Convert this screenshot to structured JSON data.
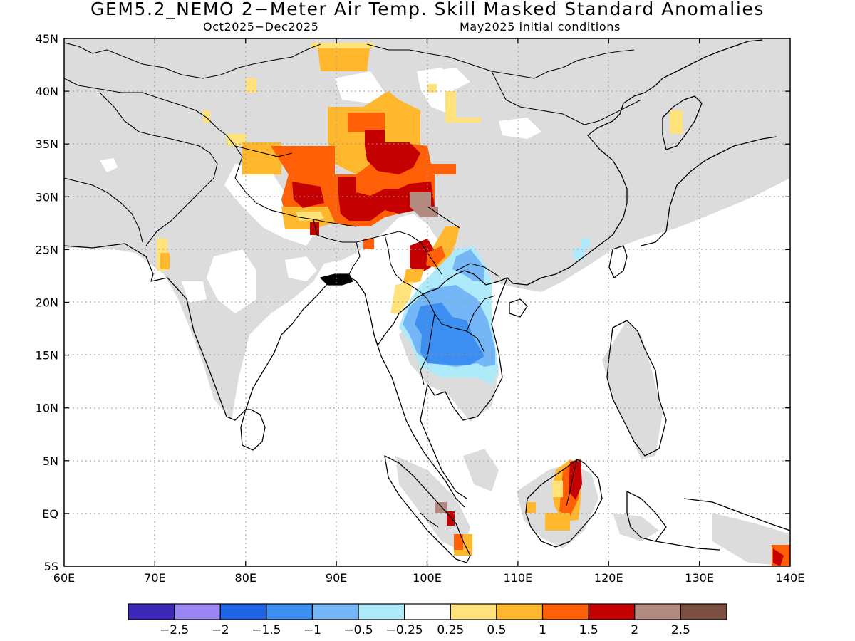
{
  "map": {
    "title": "GEM5.2_NEMO 2−Meter Air Temp. Skill Masked Standard Anomalies",
    "subtitle_left": "Oct2025−Dec2025",
    "subtitle_right": "May2025 initial conditions",
    "lon_labels": [
      "60E",
      "70E",
      "80E",
      "90E",
      "100E",
      "110E",
      "120E",
      "130E",
      "140E"
    ],
    "lat_labels": [
      "45N",
      "40N",
      "35N",
      "30N",
      "25N",
      "20N",
      "15N",
      "10N",
      "5N",
      "EQ",
      "5S"
    ],
    "extent": {
      "lon": [
        60,
        140
      ],
      "lat": [
        -5,
        45
      ]
    },
    "grid": "dotted",
    "mask_color": "#dcdcdc",
    "land_outline_color": "#000000"
  },
  "colorbar": {
    "colors": [
      "#3b27b8",
      "#9b87f3",
      "#1f64e6",
      "#3c8ef0",
      "#74b6f6",
      "#aeeafa",
      "#ffffff",
      "#ffe37a",
      "#ffb72e",
      "#ff5f07",
      "#c40000",
      "#b38a80",
      "#7a4f42"
    ],
    "labels": [
      "−2.5",
      "−2",
      "−1.5",
      "−1",
      "−0.5",
      "−0.25",
      "0.25",
      "0.5",
      "1",
      "1.5",
      "2",
      "2.5"
    ]
  }
}
